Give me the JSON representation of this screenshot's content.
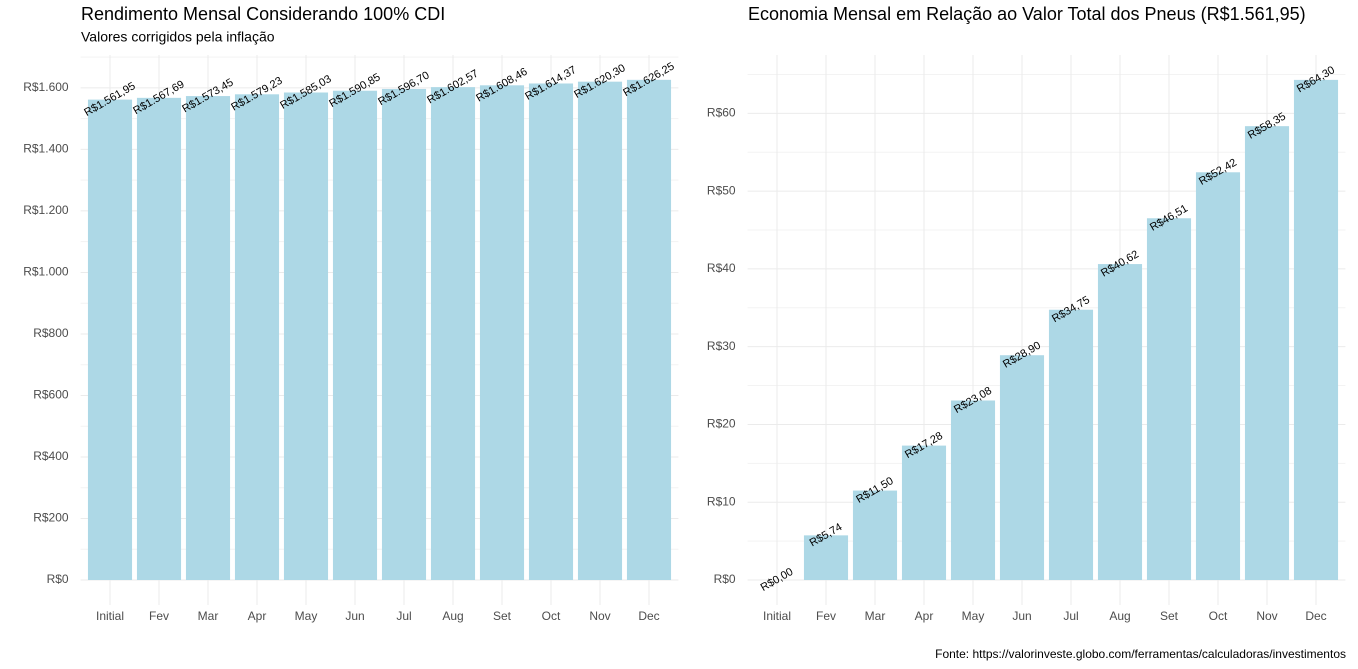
{
  "chart_data": [
    {
      "type": "bar",
      "title": "Rendimento Mensal Considerando 100% CDI",
      "subtitle": "Valores corrigidos pela inflação",
      "categories": [
        "Initial",
        "Fev",
        "Mar",
        "Apr",
        "May",
        "Jun",
        "Jul",
        "Aug",
        "Set",
        "Oct",
        "Nov",
        "Dec"
      ],
      "values": [
        1561.95,
        1567.69,
        1573.45,
        1579.23,
        1585.03,
        1590.85,
        1596.7,
        1602.57,
        1608.46,
        1614.37,
        1620.3,
        1626.25
      ],
      "value_labels": [
        "R$1.561,95",
        "R$1.567,69",
        "R$1.573,45",
        "R$1.579,23",
        "R$1.585,03",
        "R$1.590,85",
        "R$1.596,70",
        "R$1.602,57",
        "R$1.608,46",
        "R$1.614,37",
        "R$1.620,30",
        "R$1.626,25"
      ],
      "color": "#add8e6",
      "ylim": [
        0,
        1707
      ],
      "yticks": [
        {
          "value": 0,
          "label": "R$0"
        },
        {
          "value": 200,
          "label": "R$200"
        },
        {
          "value": 400,
          "label": "R$400"
        },
        {
          "value": 600,
          "label": "R$600"
        },
        {
          "value": 800,
          "label": "R$800"
        },
        {
          "value": 1000,
          "label": "R$1.000"
        },
        {
          "value": 1200,
          "label": "R$1.200"
        },
        {
          "value": 1400,
          "label": "R$1.400"
        },
        {
          "value": 1600,
          "label": "R$1.600"
        }
      ],
      "grid": true
    },
    {
      "type": "bar",
      "title": "Economia Mensal em Relação ao Valor Total dos Pneus (R$1.561,95)",
      "categories": [
        "Initial",
        "Fev",
        "Mar",
        "Apr",
        "May",
        "Jun",
        "Jul",
        "Aug",
        "Set",
        "Oct",
        "Nov",
        "Dec"
      ],
      "values": [
        0.0,
        5.74,
        11.5,
        17.28,
        23.08,
        28.9,
        34.75,
        40.62,
        46.51,
        52.42,
        58.35,
        64.3
      ],
      "value_labels": [
        "R$0,00",
        "R$5,74",
        "R$11,50",
        "R$17,28",
        "R$23,08",
        "R$28,90",
        "R$34,75",
        "R$40,62",
        "R$46,51",
        "R$52,42",
        "R$58,35",
        "R$64,30"
      ],
      "color": "#add8e6",
      "ylim": [
        0,
        67.5
      ],
      "yticks": [
        {
          "value": 0,
          "label": "R$0"
        },
        {
          "value": 10,
          "label": "R$10"
        },
        {
          "value": 20,
          "label": "R$20"
        },
        {
          "value": 30,
          "label": "R$30"
        },
        {
          "value": 40,
          "label": "R$40"
        },
        {
          "value": 50,
          "label": "R$50"
        },
        {
          "value": 60,
          "label": "R$60"
        }
      ],
      "grid": true
    }
  ],
  "caption": "Fonte: https://valorinveste.globo.com/ferramentas/calculadoras/investimentos"
}
